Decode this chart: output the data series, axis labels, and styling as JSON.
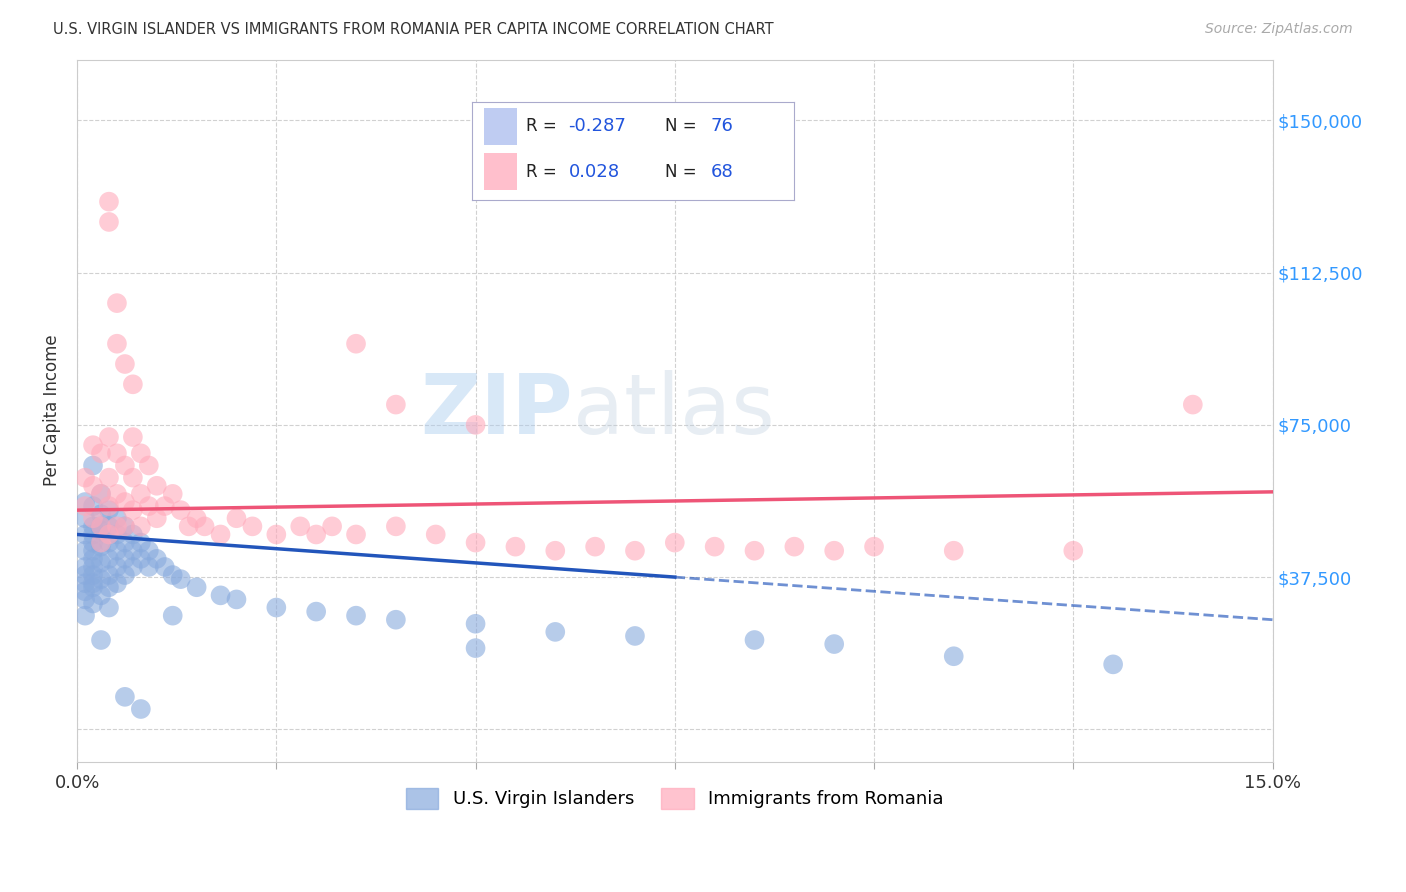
{
  "title": "U.S. VIRGIN ISLANDER VS IMMIGRANTS FROM ROMANIA PER CAPITA INCOME CORRELATION CHART",
  "source": "Source: ZipAtlas.com",
  "ylabel": "Per Capita Income",
  "xlim": [
    0.0,
    0.15
  ],
  "ylim": [
    -8000,
    165000
  ],
  "ytick_positions": [
    0,
    37500,
    75000,
    112500,
    150000
  ],
  "ytick_labels": [
    "",
    "$37,500",
    "$75,000",
    "$112,500",
    "$150,000"
  ],
  "grid_color": "#cccccc",
  "background_color": "#ffffff",
  "blue_color": "#88aadd",
  "pink_color": "#ffaabb",
  "blue_line_color": "#2255bb",
  "pink_line_color": "#ee5577",
  "label_blue": "U.S. Virgin Islanders",
  "label_pink": "Immigrants from Romania",
  "watermark_zip": "ZIP",
  "watermark_atlas": "atlas",
  "blue_x": [
    0.001,
    0.001,
    0.001,
    0.001,
    0.001,
    0.001,
    0.001,
    0.001,
    0.001,
    0.001,
    0.002,
    0.002,
    0.002,
    0.002,
    0.002,
    0.002,
    0.002,
    0.002,
    0.002,
    0.002,
    0.002,
    0.003,
    0.003,
    0.003,
    0.003,
    0.003,
    0.003,
    0.003,
    0.003,
    0.004,
    0.004,
    0.004,
    0.004,
    0.004,
    0.004,
    0.004,
    0.005,
    0.005,
    0.005,
    0.005,
    0.005,
    0.006,
    0.006,
    0.006,
    0.006,
    0.007,
    0.007,
    0.007,
    0.008,
    0.008,
    0.009,
    0.009,
    0.01,
    0.011,
    0.012,
    0.013,
    0.015,
    0.018,
    0.02,
    0.025,
    0.03,
    0.035,
    0.04,
    0.05,
    0.06,
    0.07,
    0.085,
    0.095,
    0.11,
    0.13,
    0.002,
    0.003,
    0.006,
    0.008,
    0.012,
    0.05
  ],
  "blue_y": [
    48000,
    44000,
    40000,
    36000,
    32000,
    28000,
    52000,
    56000,
    38000,
    34000,
    50000,
    46000,
    42000,
    38000,
    35000,
    31000,
    55000,
    48000,
    44000,
    40000,
    36000,
    53000,
    49000,
    45000,
    41000,
    37000,
    33000,
    58000,
    50000,
    54000,
    50000,
    46000,
    42000,
    38000,
    35000,
    30000,
    52000,
    48000,
    44000,
    40000,
    36000,
    50000,
    46000,
    42000,
    38000,
    48000,
    44000,
    40000,
    46000,
    42000,
    44000,
    40000,
    42000,
    40000,
    38000,
    37000,
    35000,
    33000,
    32000,
    30000,
    29000,
    28000,
    27000,
    26000,
    24000,
    23000,
    22000,
    21000,
    18000,
    16000,
    65000,
    22000,
    8000,
    5000,
    28000,
    20000
  ],
  "pink_x": [
    0.001,
    0.001,
    0.002,
    0.002,
    0.002,
    0.003,
    0.003,
    0.003,
    0.003,
    0.004,
    0.004,
    0.004,
    0.004,
    0.005,
    0.005,
    0.005,
    0.006,
    0.006,
    0.006,
    0.007,
    0.007,
    0.007,
    0.008,
    0.008,
    0.008,
    0.009,
    0.009,
    0.01,
    0.01,
    0.011,
    0.012,
    0.013,
    0.014,
    0.015,
    0.016,
    0.018,
    0.02,
    0.022,
    0.025,
    0.028,
    0.03,
    0.032,
    0.035,
    0.04,
    0.045,
    0.05,
    0.055,
    0.06,
    0.065,
    0.07,
    0.075,
    0.08,
    0.085,
    0.09,
    0.095,
    0.1,
    0.11,
    0.125,
    0.14,
    0.004,
    0.004,
    0.005,
    0.005,
    0.006,
    0.007,
    0.035,
    0.04,
    0.05
  ],
  "pink_y": [
    62000,
    55000,
    70000,
    60000,
    52000,
    68000,
    58000,
    50000,
    46000,
    72000,
    62000,
    55000,
    48000,
    68000,
    58000,
    50000,
    65000,
    56000,
    50000,
    72000,
    62000,
    54000,
    68000,
    58000,
    50000,
    65000,
    55000,
    60000,
    52000,
    55000,
    58000,
    54000,
    50000,
    52000,
    50000,
    48000,
    52000,
    50000,
    48000,
    50000,
    48000,
    50000,
    48000,
    50000,
    48000,
    46000,
    45000,
    44000,
    45000,
    44000,
    46000,
    45000,
    44000,
    45000,
    44000,
    45000,
    44000,
    44000,
    80000,
    130000,
    125000,
    105000,
    95000,
    90000,
    85000,
    95000,
    80000,
    75000
  ]
}
